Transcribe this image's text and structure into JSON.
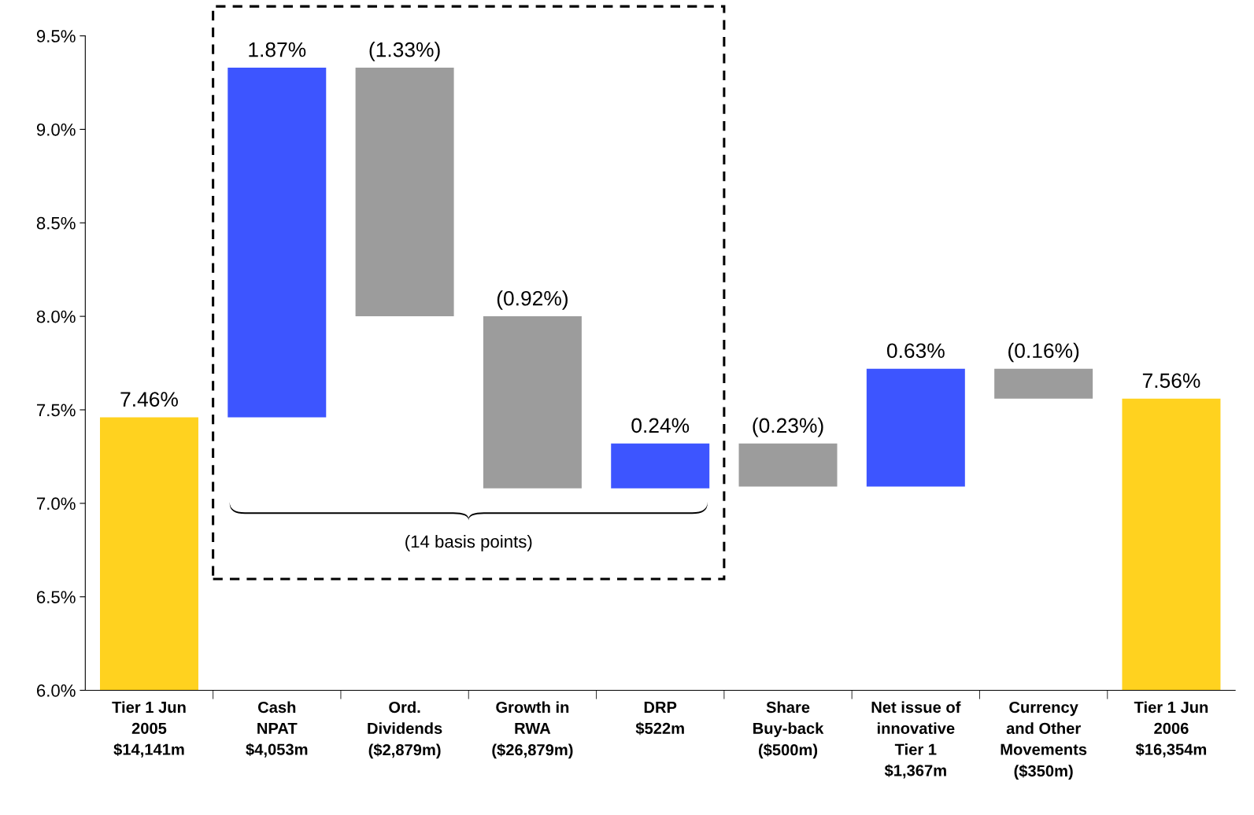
{
  "chart_data": {
    "type": "bar",
    "categories": [
      "Tier 1 Jun\n2005\n$14,141m",
      "Cash\nNPAT\n$4,053m",
      "Ord.\nDividends\n($2,879m)",
      "Growth in\nRWA\n($26,879m)",
      "DRP\n$522m",
      "Share\nBuy-back\n($500m)",
      "Net issue of\ninnovative\nTier 1\n$1,367m",
      "Currency\nand Other\nMovements\n($350m)",
      "Tier 1 Jun\n2006\n$16,354m"
    ],
    "values": [
      7.46,
      1.87,
      -1.33,
      -0.92,
      0.24,
      -0.23,
      0.63,
      -0.16,
      7.56
    ],
    "base": [
      null,
      7.46,
      9.33,
      8.0,
      7.08,
      7.32,
      7.09,
      7.72,
      null
    ],
    "colors": [
      "#ffd21f",
      "#3d55ff",
      "#9c9c9c",
      "#9c9c9c",
      "#3d55ff",
      "#9c9c9c",
      "#3d55ff",
      "#9c9c9c",
      "#ffd21f"
    ],
    "value_labels": [
      "7.46%",
      "1.87%",
      "(1.33%)",
      "(0.92%)",
      "0.24%",
      "(0.23%)",
      "0.63%",
      "(0.16%)",
      "7.56%"
    ],
    "ylim": [
      6.0,
      9.5
    ],
    "yticks": [
      {
        "value": 6.0,
        "label": "6.0%"
      },
      {
        "value": 6.5,
        "label": "6.5%"
      },
      {
        "value": 7.0,
        "label": "7.0%"
      },
      {
        "value": 7.5,
        "label": "7.5%"
      },
      {
        "value": 8.0,
        "label": "8.0%"
      },
      {
        "value": 8.5,
        "label": "8.5%"
      },
      {
        "value": 9.0,
        "label": "9.0%"
      },
      {
        "value": 9.5,
        "label": "9.5%"
      }
    ],
    "annotations": [
      "(14 basis points)"
    ],
    "grid": false
  }
}
